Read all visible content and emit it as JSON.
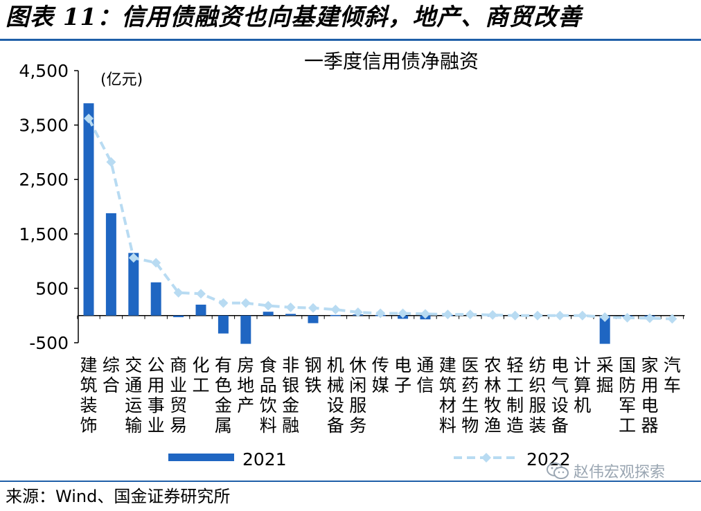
{
  "figure_title": "图表 11：信用债融资也向基建倾斜，地产、商贸改善",
  "source_note": "来源：Wind、国金证券研究所",
  "watermark": "赵伟宏观探索",
  "watermark_icon": "wechat-icon",
  "colors": {
    "series_2021": "#1f66c2",
    "series_2022": "#b8dbf2",
    "rule": "#1f5fa8",
    "text": "#000000"
  },
  "chart_data": {
    "type": "bar+line",
    "title": "一季度信用债净融资",
    "unit_label": "(亿元)",
    "ylim": [
      -500,
      4500
    ],
    "yticks": [
      4500,
      3500,
      2500,
      1500,
      500,
      -500
    ],
    "ytick_labels": [
      "4,500",
      "3,500",
      "2,500",
      "1,500",
      "500",
      "-500"
    ],
    "categories": [
      "建筑装饰",
      "综合",
      "交通运输",
      "公用事业",
      "商业贸易",
      "化工",
      "有色金属",
      "房地产",
      "食品饮料",
      "非银金融",
      "钢铁",
      "机械设备",
      "休闲服务",
      "传媒",
      "电子",
      "通信",
      "建筑材料",
      "医药生物",
      "农林牧渔",
      "轻工制造",
      "纺织服装",
      "电气设备",
      "计算机",
      "采掘",
      "国防军工",
      "家用电器",
      "汽车"
    ],
    "category_lines": [
      [
        "建",
        "筑",
        "装",
        "饰"
      ],
      [
        "综",
        "合"
      ],
      [
        "交",
        "通",
        "运",
        "输"
      ],
      [
        "公",
        "用",
        "事",
        "业"
      ],
      [
        "商",
        "业",
        "贸",
        "易"
      ],
      [
        "化",
        "工"
      ],
      [
        "有",
        "色",
        "金",
        "属"
      ],
      [
        "房",
        "地",
        "产"
      ],
      [
        "食",
        "品",
        "饮",
        "料"
      ],
      [
        "非",
        "银",
        "金",
        "融"
      ],
      [
        "钢",
        "铁"
      ],
      [
        "机",
        "械",
        "设",
        "备"
      ],
      [
        "休",
        "闲",
        "服",
        "务"
      ],
      [
        "传",
        "媒"
      ],
      [
        "电",
        "子"
      ],
      [
        "通",
        "信"
      ],
      [
        "建",
        "筑",
        "材",
        "料"
      ],
      [
        "医",
        "药",
        "生",
        "物"
      ],
      [
        "农",
        "林",
        "牧",
        "渔"
      ],
      [
        "轻",
        "工",
        "制",
        "造"
      ],
      [
        "纺",
        "织",
        "服",
        "装"
      ],
      [
        "电",
        "气",
        "设",
        "备"
      ],
      [
        "计",
        "算",
        "机"
      ],
      [
        "采",
        "掘"
      ],
      [
        "国",
        "防",
        "军",
        "工"
      ],
      [
        "家",
        "用",
        "电",
        "器"
      ],
      [
        "汽",
        "车"
      ]
    ],
    "series": [
      {
        "name": "2021",
        "type": "bar",
        "values": [
          3900,
          1880,
          1150,
          610,
          -30,
          200,
          -330,
          -520,
          70,
          30,
          -140,
          10,
          20,
          10,
          -60,
          -70,
          10,
          0,
          -10,
          0,
          0,
          0,
          0,
          -520,
          -20,
          -20,
          0
        ]
      },
      {
        "name": "2022",
        "type": "line",
        "values": [
          3620,
          2820,
          1060,
          970,
          420,
          400,
          230,
          230,
          180,
          150,
          140,
          110,
          60,
          40,
          40,
          30,
          20,
          20,
          10,
          0,
          0,
          0,
          0,
          -30,
          -40,
          -50,
          -60
        ]
      }
    ],
    "legend": [
      "2021",
      "2022"
    ],
    "legend_position": "bottom"
  }
}
